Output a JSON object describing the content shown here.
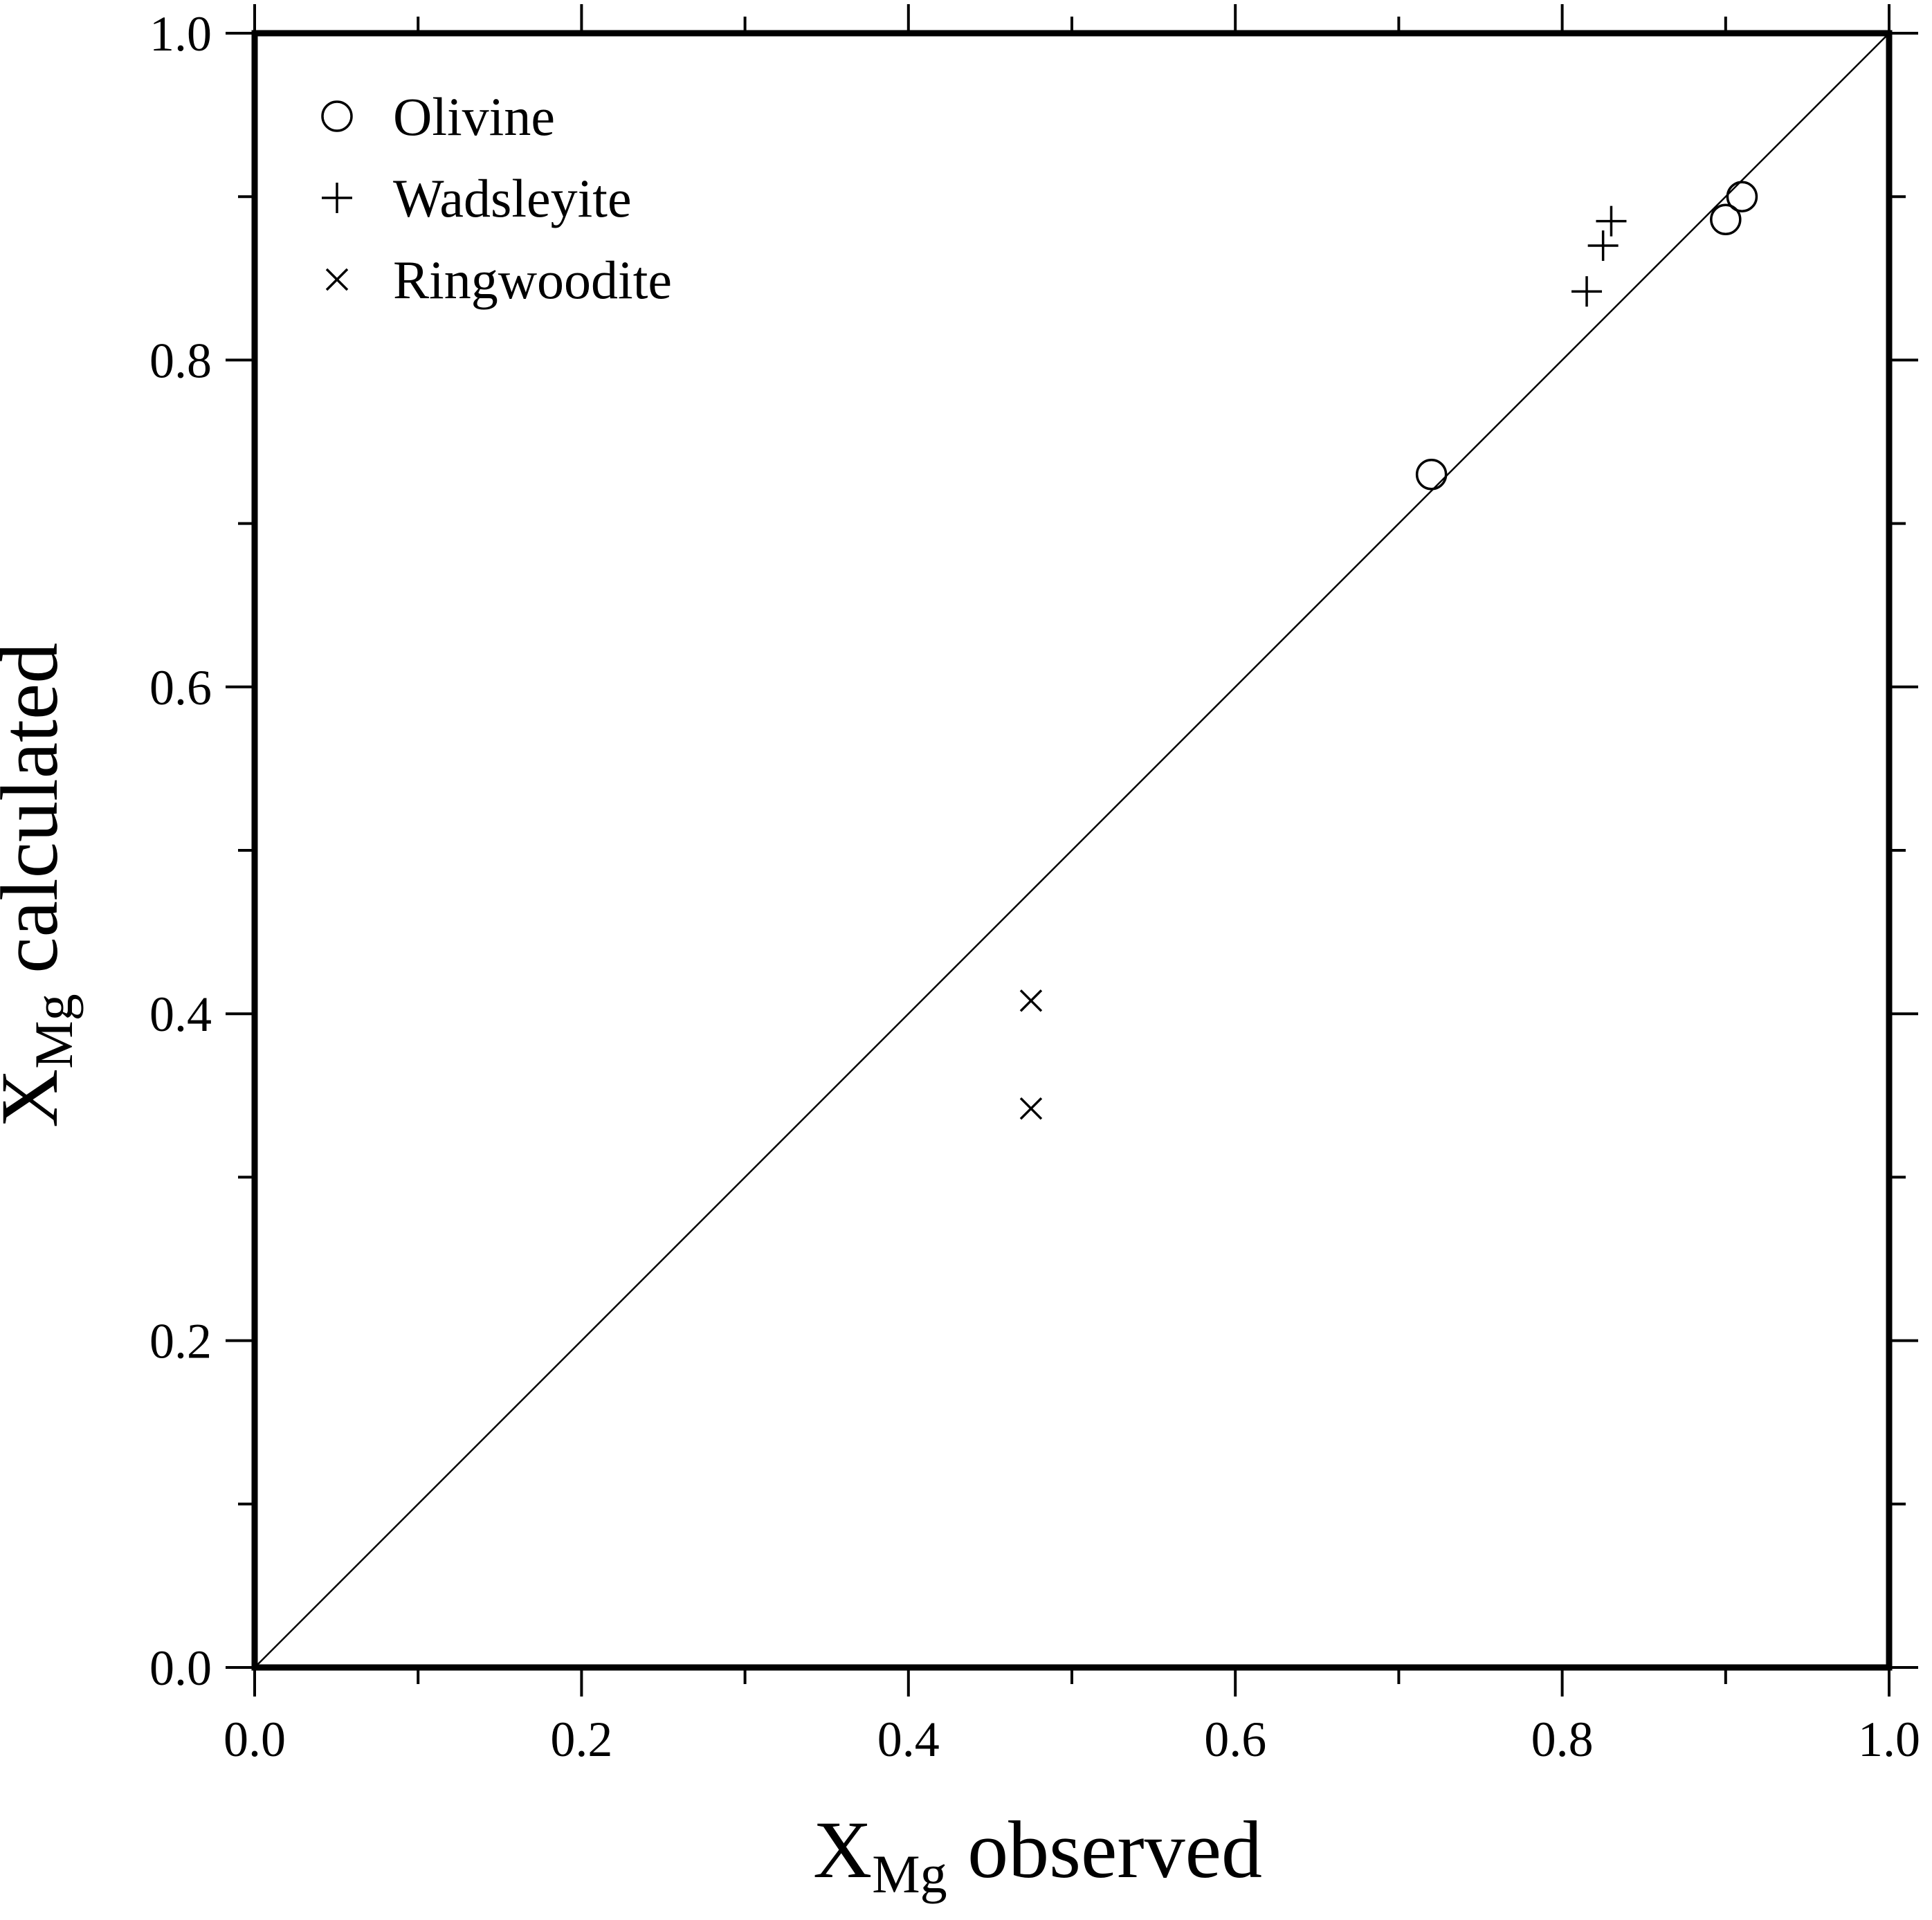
{
  "chart_data": {
    "type": "scatter",
    "xlabel": {
      "main": "X",
      "sub": "Mg",
      "rest": " observed"
    },
    "ylabel": {
      "main": "X",
      "sub": "Mg",
      "rest": " calculated"
    },
    "xlim": [
      0.0,
      1.0
    ],
    "ylim": [
      0.0,
      1.0
    ],
    "major_ticks": [
      0.0,
      0.2,
      0.4,
      0.6,
      0.8,
      1.0
    ],
    "minor_ticks": [
      0.1,
      0.3,
      0.5,
      0.7,
      0.9
    ],
    "tick_labels": [
      "0.0",
      "0.2",
      "0.4",
      "0.6",
      "0.8",
      "1.0"
    ],
    "grid": false,
    "reference_line": {
      "type": "y=x",
      "from": [
        0.0,
        0.0
      ],
      "to": [
        1.0,
        1.0
      ]
    },
    "legend_position": "top-left",
    "series": [
      {
        "name": "Olivine",
        "marker": "circle",
        "points": [
          [
            0.72,
            0.73
          ],
          [
            0.9,
            0.886
          ],
          [
            0.91,
            0.9
          ]
        ]
      },
      {
        "name": "Wadsleyite",
        "marker": "plus",
        "points": [
          [
            0.815,
            0.842
          ],
          [
            0.825,
            0.87
          ],
          [
            0.83,
            0.885
          ]
        ]
      },
      {
        "name": "Ringwoodite",
        "marker": "cross",
        "points": [
          [
            0.475,
            0.408
          ],
          [
            0.475,
            0.342
          ]
        ]
      }
    ]
  }
}
